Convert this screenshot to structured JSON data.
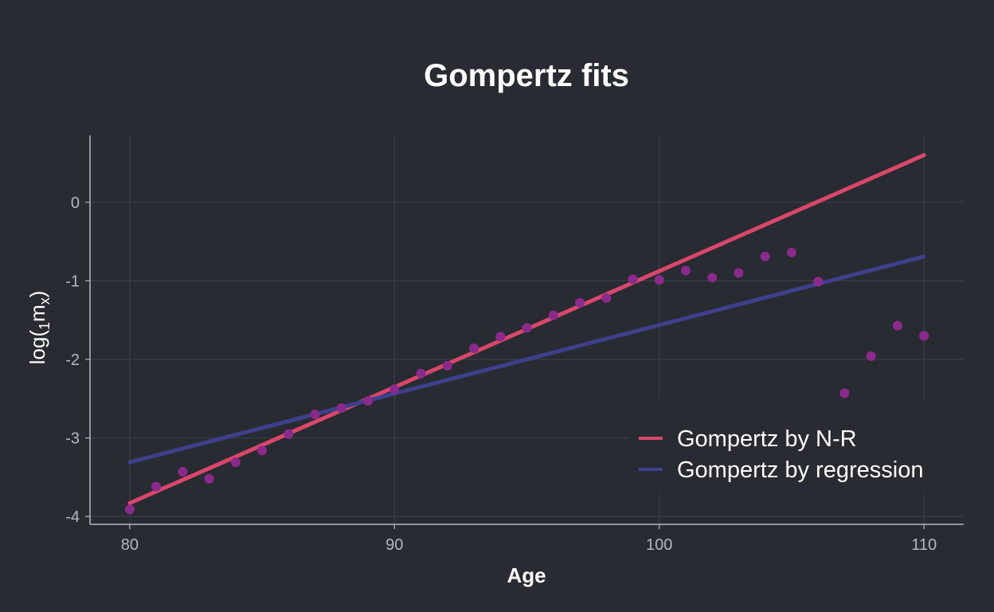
{
  "chart_data": {
    "type": "scatter",
    "title": "Gompertz fits",
    "xlabel": "Age",
    "ylabel": {
      "prefix": "log(",
      "subscript": "1",
      "main": "m",
      "subscript2": "x",
      "suffix": ")"
    },
    "xlim": [
      78.5,
      111.5
    ],
    "ylim": [
      -4.1,
      0.85
    ],
    "xticks": [
      80,
      90,
      100,
      110
    ],
    "yticks": [
      0,
      -1,
      -2,
      -3,
      -4
    ],
    "grid": true,
    "legend_position": "bottom-right",
    "points": {
      "color": "#8b2a8c",
      "x": [
        80,
        81,
        82,
        83,
        84,
        85,
        86,
        87,
        88,
        89,
        90,
        91,
        92,
        93,
        94,
        95,
        96,
        97,
        98,
        99,
        100,
        101,
        102,
        103,
        104,
        105,
        106,
        107,
        108,
        109,
        110
      ],
      "y": [
        -3.91,
        -3.62,
        -3.43,
        -3.52,
        -3.31,
        -3.16,
        -2.95,
        -2.7,
        -2.62,
        -2.53,
        -2.38,
        -2.18,
        -2.08,
        -1.86,
        -1.71,
        -1.6,
        -1.44,
        -1.28,
        -1.22,
        -0.98,
        -0.99,
        -0.87,
        -0.96,
        -0.9,
        -0.69,
        -0.64,
        -1.01,
        -2.43,
        -1.96,
        -1.57,
        -1.7
      ]
    },
    "series": [
      {
        "name": "Gompertz by N-R",
        "color": "#d9476b",
        "x": [
          80,
          110
        ],
        "y": [
          -3.83,
          0.6
        ]
      },
      {
        "name": "Gompertz by regression",
        "color": "#3f3f8c",
        "x": [
          80,
          110
        ],
        "y": [
          -3.31,
          -0.69
        ]
      }
    ]
  }
}
